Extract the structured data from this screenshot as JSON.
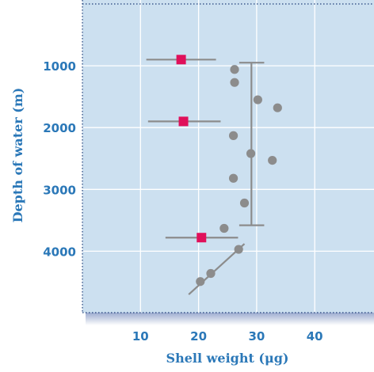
{
  "chart_data": {
    "type": "scatter",
    "xlabel": "Shell weight (μg)",
    "ylabel": "Depth of water (m)",
    "xlim": [
      0,
      50
    ],
    "ylim": [
      4800,
      0
    ],
    "y_inverted": true,
    "grid": true,
    "x_ticks": [
      10,
      20,
      30,
      40
    ],
    "y_ticks": [
      1000,
      2000,
      3000,
      4000
    ],
    "colors": {
      "plot_background": "#cce0f0",
      "grid": "#ffffff",
      "axis_text": "#2b78b8",
      "points": "#8c8c8c",
      "highlight": "#e0105a",
      "lines": "#8c8c8c"
    },
    "series": [
      {
        "marker": "circle",
        "color": "#8c8c8c",
        "points": [
          {
            "x": 26.2,
            "y": 1060
          },
          {
            "x": 26.2,
            "y": 1270
          },
          {
            "x": 30.2,
            "y": 1550
          },
          {
            "x": 33.6,
            "y": 1680
          },
          {
            "x": 26.0,
            "y": 2130
          },
          {
            "x": 29.0,
            "y": 2420
          },
          {
            "x": 32.7,
            "y": 2530
          },
          {
            "x": 26.0,
            "y": 2820
          },
          {
            "x": 27.9,
            "y": 3220
          },
          {
            "x": 24.4,
            "y": 3630
          },
          {
            "x": 26.9,
            "y": 3970
          },
          {
            "x": 22.1,
            "y": 4360
          },
          {
            "x": 20.3,
            "y": 4490
          }
        ]
      },
      {
        "marker": "square",
        "color": "#e0105a",
        "points": [
          {
            "x": 17.0,
            "y": 900,
            "xerr_low": 11.0,
            "xerr_high": 23.0
          },
          {
            "x": 17.4,
            "y": 1900,
            "xerr_low": 11.3,
            "xerr_high": 23.8
          },
          {
            "x": 20.5,
            "y": 3780,
            "xerr_low": 14.3,
            "xerr_high": 26.8
          }
        ]
      }
    ],
    "bracket": {
      "x": 29.1,
      "y_from": 950,
      "y_to": 3580,
      "cap_from": 27.0,
      "cap_to": 31.3
    },
    "trend_line": {
      "from": {
        "x": 18.3,
        "y": 4700
      },
      "to": {
        "x": 27.9,
        "y": 3880
      }
    }
  }
}
